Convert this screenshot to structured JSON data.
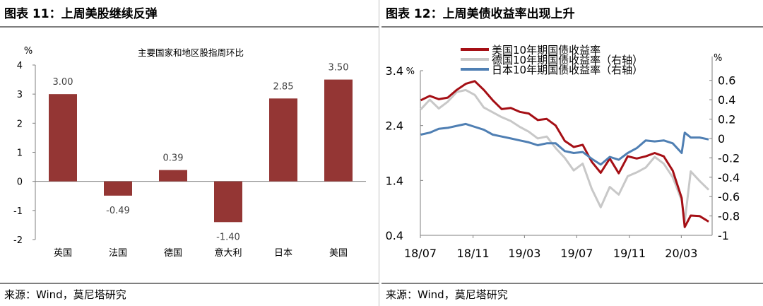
{
  "left": {
    "figure_title": "图表 11：上周美股继续反弹",
    "source": "来源：Wind，莫尼塔研究"
  },
  "right": {
    "figure_title": "图表 12：上周美债收益率出现上升",
    "source": "来源：Wind，莫尼塔研究"
  },
  "colors": {
    "bar": "#943634",
    "us": "#a50f15",
    "de": "#c8c8c8",
    "jp": "#4f7fb3",
    "rule": "#7f7f7f"
  },
  "chart_data": [
    {
      "type": "bar",
      "title": "主要国家和地区股指周环比",
      "ylabel": "%",
      "categories": [
        "英国",
        "法国",
        "德国",
        "意大利",
        "日本",
        "美国"
      ],
      "values": [
        3.0,
        -0.49,
        0.39,
        -1.4,
        2.85,
        3.5
      ],
      "data_labels": [
        "3.00",
        "-0.49",
        "0.39",
        "-1.40",
        "2.85",
        "3.50"
      ],
      "ylim": [
        -2,
        4
      ],
      "yticks": [
        "4",
        "3",
        "2",
        "1",
        "0",
        "-1",
        "-2"
      ],
      "grid": false,
      "legend": "none"
    },
    {
      "type": "line",
      "left_axis_label": "%",
      "right_axis_label": "%",
      "ylim_left": [
        0.4,
        3.4
      ],
      "ylim_right": [
        -1.0,
        0.7
      ],
      "yticks_left": [
        "3.4",
        "2.4",
        "1.4",
        "0.4"
      ],
      "yticks_right": [
        "0.6",
        "0.4",
        "0.2",
        "0",
        "-0.2",
        "-0.4",
        "-0.6",
        "-0.8",
        "-1"
      ],
      "xticks": [
        "18/07",
        "18/11",
        "19/03",
        "19/07",
        "19/11",
        "20/03"
      ],
      "x_tick_dates": [
        "2018-07-01",
        "2018-11-01",
        "2019-03-01",
        "2019-07-01",
        "2019-11-01",
        "2020-03-01"
      ],
      "xlim": [
        "2018-07-01",
        "2020-05-12"
      ],
      "legend_position": "top-center",
      "series": [
        {
          "name": "美国10年期国债收益率",
          "axis": "left",
          "x": [
            "2018-07-02",
            "2018-07-23",
            "2018-08-13",
            "2018-09-03",
            "2018-09-24",
            "2018-10-15",
            "2018-11-05",
            "2018-11-26",
            "2018-12-17",
            "2019-01-07",
            "2019-01-28",
            "2019-02-18",
            "2019-03-11",
            "2019-04-01",
            "2019-04-22",
            "2019-05-13",
            "2019-06-03",
            "2019-06-24",
            "2019-07-15",
            "2019-08-05",
            "2019-08-26",
            "2019-09-16",
            "2019-10-07",
            "2019-10-28",
            "2019-11-18",
            "2019-12-09",
            "2019-12-30",
            "2020-01-20",
            "2020-02-10",
            "2020-03-02",
            "2020-03-09",
            "2020-03-23",
            "2020-04-13",
            "2020-05-04"
          ],
          "y": [
            2.86,
            2.94,
            2.88,
            2.91,
            3.05,
            3.16,
            3.21,
            3.05,
            2.86,
            2.7,
            2.72,
            2.65,
            2.62,
            2.5,
            2.52,
            2.4,
            2.12,
            2.01,
            2.05,
            1.74,
            1.54,
            1.8,
            1.53,
            1.84,
            1.8,
            1.84,
            1.9,
            1.84,
            1.58,
            1.08,
            0.55,
            0.76,
            0.75,
            0.65
          ]
        },
        {
          "name": "德国10年期国债收益率（右轴）",
          "axis": "right",
          "x": [
            "2018-07-02",
            "2018-07-23",
            "2018-08-13",
            "2018-09-03",
            "2018-09-24",
            "2018-10-15",
            "2018-11-05",
            "2018-11-26",
            "2018-12-17",
            "2019-01-07",
            "2019-01-28",
            "2019-02-18",
            "2019-03-11",
            "2019-04-01",
            "2019-04-22",
            "2019-05-13",
            "2019-06-03",
            "2019-06-24",
            "2019-07-15",
            "2019-08-05",
            "2019-08-26",
            "2019-09-16",
            "2019-10-07",
            "2019-10-28",
            "2019-11-18",
            "2019-12-09",
            "2019-12-30",
            "2020-01-20",
            "2020-02-10",
            "2020-03-02",
            "2020-03-09",
            "2020-03-23",
            "2020-04-13",
            "2020-05-04"
          ],
          "y": [
            0.3,
            0.4,
            0.31,
            0.38,
            0.48,
            0.5,
            0.45,
            0.32,
            0.27,
            0.22,
            0.18,
            0.12,
            0.07,
            0.0,
            0.02,
            -0.1,
            -0.2,
            -0.33,
            -0.26,
            -0.52,
            -0.71,
            -0.5,
            -0.58,
            -0.39,
            -0.35,
            -0.3,
            -0.19,
            -0.26,
            -0.4,
            -0.64,
            -0.86,
            -0.34,
            -0.44,
            -0.53
          ]
        },
        {
          "name": "日本10年期国债收益率（右轴）",
          "axis": "right",
          "x": [
            "2018-07-02",
            "2018-07-23",
            "2018-08-13",
            "2018-09-03",
            "2018-09-24",
            "2018-10-15",
            "2018-11-05",
            "2018-11-26",
            "2018-12-17",
            "2019-01-07",
            "2019-01-28",
            "2019-02-18",
            "2019-03-11",
            "2019-04-01",
            "2019-04-22",
            "2019-05-13",
            "2019-06-03",
            "2019-06-24",
            "2019-07-15",
            "2019-08-05",
            "2019-08-26",
            "2019-09-16",
            "2019-10-07",
            "2019-10-28",
            "2019-11-18",
            "2019-12-09",
            "2019-12-30",
            "2020-01-20",
            "2020-02-10",
            "2020-03-02",
            "2020-03-09",
            "2020-03-23",
            "2020-04-13",
            "2020-05-04"
          ],
          "y": [
            0.04,
            0.06,
            0.1,
            0.11,
            0.13,
            0.15,
            0.12,
            0.09,
            0.04,
            0.02,
            0.0,
            -0.02,
            -0.04,
            -0.07,
            -0.05,
            -0.05,
            -0.13,
            -0.15,
            -0.14,
            -0.21,
            -0.27,
            -0.19,
            -0.22,
            -0.15,
            -0.1,
            -0.02,
            -0.03,
            -0.02,
            -0.05,
            -0.15,
            0.06,
            0.01,
            0.01,
            -0.01
          ]
        }
      ]
    }
  ]
}
